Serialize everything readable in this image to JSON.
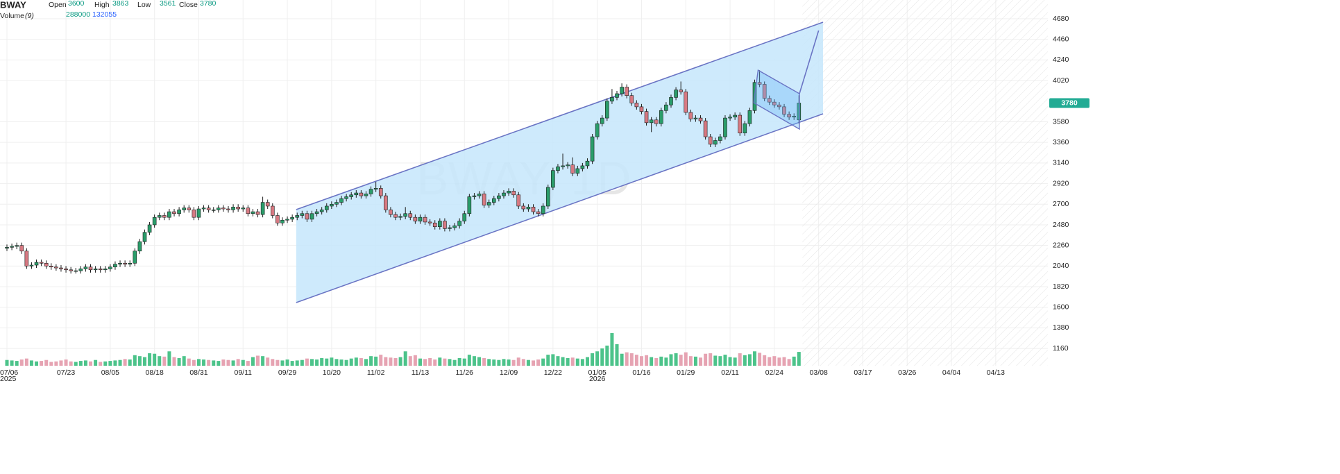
{
  "chart_data": {
    "type": "candlestick",
    "symbol": "BWAY",
    "watermark": "BWAY, 1D",
    "legend_labels": {
      "open": "Open",
      "high": "High",
      "low": "Low",
      "close": "Close",
      "volume": "Volume",
      "volume_period": "(9)"
    },
    "volume_ma": 132055,
    "open": [
      2230,
      2240,
      2250,
      2260,
      2200,
      2040,
      2050,
      2080,
      2070,
      2040,
      2030,
      2020,
      2010,
      2000,
      1990,
      1990,
      2010,
      2030,
      2000,
      2010,
      2000,
      2010,
      2030,
      2060,
      2070,
      2060,
      2070,
      2200,
      2300,
      2400,
      2480,
      2560,
      2580,
      2560,
      2620,
      2600,
      2640,
      2660,
      2640,
      2560,
      2650,
      2660,
      2640,
      2640,
      2660,
      2650,
      2640,
      2670,
      2650,
      2660,
      2600,
      2620,
      2590,
      2720,
      2680,
      2580,
      2500,
      2530,
      2540,
      2560,
      2580,
      2600,
      2540,
      2600,
      2620,
      2640,
      2680,
      2700,
      2720,
      2760,
      2780,
      2800,
      2820,
      2790,
      2810,
      2860,
      2870,
      2790,
      2640,
      2590,
      2560,
      2570,
      2600,
      2560,
      2520,
      2560,
      2510,
      2500,
      2460,
      2520,
      2440,
      2450,
      2470,
      2520,
      2600,
      2780,
      2790,
      2810,
      2690,
      2720,
      2760,
      2790,
      2820,
      2840,
      2800,
      2680,
      2650,
      2670,
      2620,
      2600,
      2680,
      2880,
      3060,
      3100,
      3110,
      3120,
      3030,
      3080,
      3110,
      3160,
      3420,
      3560,
      3620,
      3800,
      3840,
      3880,
      3950,
      3860,
      3780,
      3740,
      3690,
      3570,
      3600,
      3560,
      3700,
      3760,
      3840,
      3920,
      3900,
      3680,
      3610,
      3620,
      3590,
      3420,
      3340,
      3380,
      3420,
      3620,
      3630,
      3650,
      3460,
      3560,
      3700,
      4000,
      3980,
      3830,
      3790,
      3760,
      3740,
      3660,
      3630,
      3600
    ],
    "high": [
      2270,
      2280,
      2290,
      2290,
      2230,
      2080,
      2110,
      2110,
      2100,
      2070,
      2060,
      2050,
      2040,
      2030,
      2020,
      2040,
      2060,
      2060,
      2040,
      2040,
      2040,
      2060,
      2090,
      2100,
      2100,
      2100,
      2230,
      2330,
      2430,
      2510,
      2590,
      2610,
      2610,
      2650,
      2650,
      2670,
      2690,
      2690,
      2670,
      2680,
      2690,
      2690,
      2670,
      2690,
      2690,
      2680,
      2700,
      2700,
      2690,
      2690,
      2650,
      2650,
      2780,
      2750,
      2710,
      2610,
      2560,
      2570,
      2590,
      2610,
      2630,
      2630,
      2630,
      2650,
      2670,
      2710,
      2730,
      2750,
      2790,
      2810,
      2830,
      2850,
      2850,
      2840,
      2890,
      2940,
      2900,
      2820,
      2670,
      2620,
      2600,
      2670,
      2630,
      2590,
      2590,
      2590,
      2540,
      2530,
      2550,
      2550,
      2480,
      2500,
      2550,
      2630,
      2810,
      2820,
      2840,
      2840,
      2750,
      2790,
      2820,
      2850,
      2870,
      2870,
      2830,
      2710,
      2700,
      2700,
      2650,
      2710,
      2910,
      3090,
      3130,
      3240,
      3150,
      3200,
      3110,
      3140,
      3190,
      3450,
      3590,
      3650,
      3830,
      3930,
      3910,
      3990,
      3980,
      3890,
      3810,
      3770,
      3720,
      3630,
      3630,
      3730,
      3790,
      3870,
      3950,
      4010,
      3930,
      3710,
      3650,
      3650,
      3620,
      3450,
      3410,
      3450,
      3650,
      3660,
      3680,
      3680,
      3590,
      3730,
      4030,
      4130,
      4010,
      3860,
      3820,
      3790,
      3770,
      3690,
      3670,
      3863
    ],
    "low": [
      2200,
      2210,
      2220,
      2170,
      2010,
      2010,
      2020,
      2040,
      2010,
      2000,
      1990,
      1980,
      1970,
      1960,
      1960,
      1960,
      1980,
      1970,
      1970,
      1970,
      1970,
      1980,
      2000,
      2030,
      2030,
      2030,
      2040,
      2170,
      2270,
      2370,
      2450,
      2530,
      2530,
      2530,
      2570,
      2570,
      2610,
      2610,
      2530,
      2530,
      2620,
      2610,
      2610,
      2610,
      2620,
      2610,
      2610,
      2620,
      2620,
      2570,
      2570,
      2560,
      2560,
      2650,
      2550,
      2470,
      2470,
      2500,
      2510,
      2530,
      2550,
      2510,
      2510,
      2570,
      2590,
      2610,
      2650,
      2670,
      2690,
      2730,
      2750,
      2770,
      2760,
      2760,
      2780,
      2830,
      2760,
      2610,
      2560,
      2530,
      2530,
      2540,
      2530,
      2490,
      2490,
      2480,
      2470,
      2430,
      2430,
      2410,
      2410,
      2420,
      2440,
      2490,
      2570,
      2750,
      2760,
      2660,
      2660,
      2690,
      2730,
      2760,
      2790,
      2770,
      2650,
      2620,
      2620,
      2590,
      2570,
      2570,
      2650,
      2850,
      3030,
      3070,
      3080,
      3000,
      3000,
      3050,
      3080,
      3130,
      3390,
      3530,
      3590,
      3770,
      3810,
      3850,
      3830,
      3750,
      3710,
      3660,
      3540,
      3470,
      3530,
      3530,
      3670,
      3730,
      3810,
      3870,
      3650,
      3580,
      3580,
      3560,
      3390,
      3310,
      3310,
      3350,
      3390,
      3590,
      3600,
      3430,
      3430,
      3530,
      3670,
      3950,
      3800,
      3760,
      3730,
      3710,
      3630,
      3600,
      3600,
      3561
    ],
    "close": [
      2240,
      2250,
      2260,
      2200,
      2040,
      2050,
      2080,
      2070,
      2040,
      2030,
      2020,
      2010,
      2000,
      1990,
      1990,
      2010,
      2030,
      2000,
      2010,
      2000,
      2010,
      2030,
      2060,
      2070,
      2060,
      2070,
      2200,
      2300,
      2400,
      2480,
      2560,
      2580,
      2560,
      2620,
      2600,
      2640,
      2660,
      2640,
      2560,
      2650,
      2660,
      2640,
      2640,
      2660,
      2650,
      2640,
      2670,
      2650,
      2660,
      2600,
      2620,
      2590,
      2720,
      2680,
      2580,
      2500,
      2530,
      2540,
      2560,
      2580,
      2600,
      2540,
      2600,
      2620,
      2640,
      2680,
      2700,
      2720,
      2760,
      2780,
      2800,
      2820,
      2790,
      2810,
      2860,
      2870,
      2790,
      2640,
      2590,
      2560,
      2570,
      2600,
      2560,
      2520,
      2560,
      2510,
      2500,
      2460,
      2520,
      2440,
      2450,
      2470,
      2520,
      2600,
      2780,
      2790,
      2810,
      2690,
      2720,
      2760,
      2790,
      2820,
      2840,
      2800,
      2680,
      2650,
      2670,
      2620,
      2600,
      2680,
      2880,
      3060,
      3100,
      3110,
      3120,
      3030,
      3080,
      3110,
      3160,
      3420,
      3560,
      3620,
      3800,
      3840,
      3880,
      3950,
      3860,
      3780,
      3740,
      3690,
      3570,
      3600,
      3560,
      3700,
      3760,
      3840,
      3920,
      3900,
      3680,
      3610,
      3620,
      3590,
      3420,
      3340,
      3380,
      3420,
      3620,
      3630,
      3650,
      3460,
      3560,
      3700,
      4000,
      3980,
      3830,
      3790,
      3760,
      3740,
      3660,
      3630,
      3640,
      3780
    ],
    "volume": [
      120000,
      110000,
      100000,
      130000,
      150000,
      110000,
      90000,
      100000,
      120000,
      80000,
      90000,
      110000,
      130000,
      90000,
      80000,
      100000,
      110000,
      90000,
      120000,
      80000,
      90000,
      100000,
      110000,
      120000,
      140000,
      130000,
      220000,
      200000,
      180000,
      260000,
      250000,
      200000,
      190000,
      300000,
      180000,
      160000,
      200000,
      150000,
      120000,
      140000,
      130000,
      120000,
      110000,
      100000,
      130000,
      120000,
      110000,
      140000,
      120000,
      100000,
      180000,
      210000,
      200000,
      170000,
      140000,
      120000,
      110000,
      130000,
      100000,
      110000,
      120000,
      150000,
      140000,
      130000,
      160000,
      150000,
      170000,
      140000,
      130000,
      120000,
      150000,
      170000,
      160000,
      140000,
      200000,
      190000,
      230000,
      180000,
      170000,
      160000,
      180000,
      300000,
      200000,
      220000,
      150000,
      140000,
      160000,
      130000,
      170000,
      150000,
      140000,
      120000,
      160000,
      150000,
      230000,
      200000,
      180000,
      160000,
      140000,
      130000,
      120000,
      140000,
      130000,
      120000,
      170000,
      140000,
      120000,
      110000,
      130000,
      150000,
      230000,
      240000,
      200000,
      180000,
      160000,
      170000,
      150000,
      140000,
      180000,
      260000,
      300000,
      360000,
      420000,
      680000,
      450000,
      250000,
      280000,
      260000,
      230000,
      200000,
      220000,
      180000,
      160000,
      190000,
      170000,
      240000,
      260000,
      230000,
      280000,
      200000,
      190000,
      170000,
      250000,
      260000,
      210000,
      200000,
      230000,
      180000,
      170000,
      260000,
      220000,
      240000,
      300000,
      270000,
      220000,
      180000,
      200000,
      170000,
      180000,
      140000,
      190000,
      288000
    ],
    "xlim": [
      -1.41,
      211.6
    ],
    "xticks": [
      {
        "value": 0,
        "label": "07/06"
      },
      {
        "value": 12,
        "label": "07/23"
      },
      {
        "value": 21,
        "label": "08/05"
      },
      {
        "value": 30,
        "label": "08/18"
      },
      {
        "value": 39,
        "label": "08/31"
      },
      {
        "value": 48,
        "label": "09/11"
      },
      {
        "value": 57,
        "label": "09/29"
      },
      {
        "value": 66,
        "label": "10/20"
      },
      {
        "value": 75,
        "label": "11/02"
      },
      {
        "value": 84,
        "label": "11/13"
      },
      {
        "value": 93,
        "label": "11/26"
      },
      {
        "value": 102,
        "label": "12/09"
      },
      {
        "value": 111,
        "label": "12/22"
      },
      {
        "value": 120,
        "label": "01/05"
      },
      {
        "value": 129,
        "label": "01/16"
      },
      {
        "value": 138,
        "label": "01/29"
      },
      {
        "value": 147,
        "label": "02/11"
      },
      {
        "value": 156,
        "label": "02/24"
      },
      {
        "value": 165,
        "label": "03/08"
      },
      {
        "value": 174,
        "label": "03/17"
      },
      {
        "value": 183,
        "label": "03/26"
      },
      {
        "value": 192,
        "label": "04/04"
      },
      {
        "value": 201,
        "label": "04/13"
      }
    ],
    "year_labels": [
      {
        "value": 0,
        "label": "2025"
      },
      {
        "value": 120,
        "label": "2026"
      }
    ],
    "ylim": [
      976,
      4880
    ],
    "yticks": [
      1160,
      1380,
      1600,
      1820,
      2040,
      2260,
      2480,
      2700,
      2920,
      3140,
      3360,
      3580,
      4020,
      4240,
      4460,
      4680
    ],
    "grid": true,
    "up_color": "#2a9d6a",
    "down_color": "#d77982",
    "volume_up_color": "#4cc38a",
    "volume_down_color": "#e6a3b2",
    "last_price_color": "#22ab94",
    "channel": {
      "x": [
        58.8,
        165.9
      ],
      "upper": [
        2643,
        4643
      ],
      "lower": [
        1650,
        3665
      ]
    },
    "flag": {
      "upper_x": [
        152.7,
        161.1
      ],
      "upper": [
        4131,
        3880
      ],
      "lower_x": [
        151.8,
        161.1
      ],
      "lower": [
        3784,
        3502
      ]
    },
    "projection": {
      "x": [
        161.1,
        165
      ],
      "y": [
        3880,
        4554
      ]
    }
  }
}
